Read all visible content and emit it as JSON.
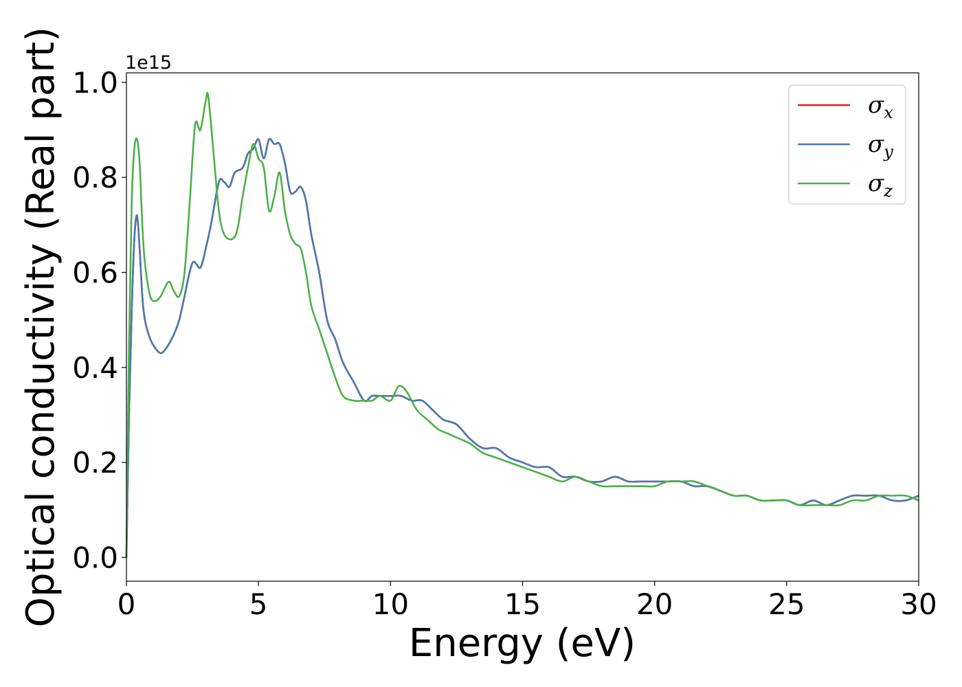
{
  "chart_data": {
    "type": "line",
    "title": "",
    "xlabel": "Energy (eV)",
    "ylabel": "Optical conductivity (Real part)",
    "y_offset_label": "1e15",
    "xlim": [
      0,
      30
    ],
    "ylim": [
      -0.05,
      1.02
    ],
    "x_ticks": [
      0,
      5,
      10,
      15,
      20,
      25,
      30
    ],
    "x_tick_labels": [
      "0",
      "5",
      "10",
      "15",
      "20",
      "25",
      "30"
    ],
    "y_ticks": [
      0.0,
      0.2,
      0.4,
      0.6,
      0.8,
      1.0
    ],
    "y_tick_labels": [
      "0.0",
      "0.2",
      "0.4",
      "0.6",
      "0.8",
      "1.0"
    ],
    "grid": false,
    "legend_position": "top-right",
    "series": [
      {
        "name": "σx",
        "symbol": "σ",
        "subscript": "x",
        "color": "#e41a1c",
        "x": [
          0,
          0.1,
          0.2,
          0.3,
          0.4,
          0.5,
          0.6,
          0.7,
          0.9,
          1.1,
          1.3,
          1.5,
          1.8,
          2.0,
          2.2,
          2.5,
          2.8,
          3.0,
          3.2,
          3.5,
          3.7,
          3.9,
          4.1,
          4.4,
          4.6,
          4.8,
          5.0,
          5.2,
          5.4,
          5.6,
          5.8,
          6.0,
          6.2,
          6.4,
          6.6,
          6.8,
          7.0,
          7.3,
          7.6,
          7.9,
          8.2,
          8.6,
          9.0,
          9.3,
          9.6,
          10.0,
          10.4,
          10.8,
          11.2,
          11.6,
          12.0,
          12.5,
          13.0,
          13.5,
          14.0,
          14.5,
          15.0,
          15.5,
          16.0,
          16.5,
          17.0,
          17.5,
          18.0,
          18.5,
          19.0,
          19.5,
          20.0,
          20.5,
          21.0,
          21.5,
          22.0,
          22.5,
          23.0,
          23.5,
          24.0,
          24.5,
          25.0,
          25.5,
          26.0,
          26.5,
          27.0,
          27.5,
          28.0,
          28.5,
          29.0,
          29.5,
          30.0
        ],
        "values": [
          0.0,
          0.3,
          0.52,
          0.67,
          0.72,
          0.65,
          0.55,
          0.5,
          0.46,
          0.44,
          0.43,
          0.44,
          0.47,
          0.5,
          0.55,
          0.62,
          0.61,
          0.65,
          0.7,
          0.79,
          0.79,
          0.78,
          0.81,
          0.82,
          0.85,
          0.86,
          0.88,
          0.84,
          0.88,
          0.87,
          0.87,
          0.83,
          0.77,
          0.77,
          0.78,
          0.75,
          0.68,
          0.6,
          0.5,
          0.46,
          0.41,
          0.37,
          0.33,
          0.34,
          0.34,
          0.34,
          0.34,
          0.33,
          0.33,
          0.31,
          0.29,
          0.28,
          0.25,
          0.23,
          0.23,
          0.21,
          0.2,
          0.19,
          0.19,
          0.17,
          0.17,
          0.16,
          0.16,
          0.17,
          0.16,
          0.16,
          0.16,
          0.16,
          0.16,
          0.15,
          0.15,
          0.14,
          0.13,
          0.13,
          0.12,
          0.12,
          0.12,
          0.11,
          0.12,
          0.11,
          0.12,
          0.13,
          0.13,
          0.13,
          0.12,
          0.12,
          0.13
        ]
      },
      {
        "name": "σy",
        "symbol": "σ",
        "subscript": "y",
        "color": "#4a7ab0",
        "x": [
          0,
          0.1,
          0.2,
          0.3,
          0.4,
          0.5,
          0.6,
          0.7,
          0.9,
          1.1,
          1.3,
          1.5,
          1.8,
          2.0,
          2.2,
          2.5,
          2.8,
          3.0,
          3.2,
          3.5,
          3.7,
          3.9,
          4.1,
          4.4,
          4.6,
          4.8,
          5.0,
          5.2,
          5.4,
          5.6,
          5.8,
          6.0,
          6.2,
          6.4,
          6.6,
          6.8,
          7.0,
          7.3,
          7.6,
          7.9,
          8.2,
          8.6,
          9.0,
          9.3,
          9.6,
          10.0,
          10.4,
          10.8,
          11.2,
          11.6,
          12.0,
          12.5,
          13.0,
          13.5,
          14.0,
          14.5,
          15.0,
          15.5,
          16.0,
          16.5,
          17.0,
          17.5,
          18.0,
          18.5,
          19.0,
          19.5,
          20.0,
          20.5,
          21.0,
          21.5,
          22.0,
          22.5,
          23.0,
          23.5,
          24.0,
          24.5,
          25.0,
          25.5,
          26.0,
          26.5,
          27.0,
          27.5,
          28.0,
          28.5,
          29.0,
          29.5,
          30.0
        ],
        "values": [
          0.0,
          0.3,
          0.52,
          0.67,
          0.72,
          0.65,
          0.55,
          0.5,
          0.46,
          0.44,
          0.43,
          0.44,
          0.47,
          0.5,
          0.55,
          0.62,
          0.61,
          0.65,
          0.7,
          0.79,
          0.79,
          0.78,
          0.81,
          0.82,
          0.85,
          0.86,
          0.88,
          0.84,
          0.88,
          0.87,
          0.87,
          0.83,
          0.77,
          0.77,
          0.78,
          0.75,
          0.68,
          0.6,
          0.5,
          0.46,
          0.41,
          0.37,
          0.33,
          0.34,
          0.34,
          0.34,
          0.34,
          0.33,
          0.33,
          0.31,
          0.29,
          0.28,
          0.25,
          0.23,
          0.23,
          0.21,
          0.2,
          0.19,
          0.19,
          0.17,
          0.17,
          0.16,
          0.16,
          0.17,
          0.16,
          0.16,
          0.16,
          0.16,
          0.16,
          0.15,
          0.15,
          0.14,
          0.13,
          0.13,
          0.12,
          0.12,
          0.12,
          0.11,
          0.12,
          0.11,
          0.12,
          0.13,
          0.13,
          0.13,
          0.12,
          0.12,
          0.13
        ]
      },
      {
        "name": "σz",
        "symbol": "σ",
        "subscript": "z",
        "color": "#4daf4a",
        "x": [
          0,
          0.1,
          0.2,
          0.3,
          0.4,
          0.5,
          0.6,
          0.7,
          0.9,
          1.1,
          1.3,
          1.6,
          1.8,
          2.0,
          2.2,
          2.4,
          2.6,
          2.8,
          3.0,
          3.1,
          3.3,
          3.5,
          3.7,
          4.0,
          4.2,
          4.4,
          4.6,
          4.8,
          5.0,
          5.2,
          5.4,
          5.6,
          5.8,
          6.0,
          6.2,
          6.4,
          6.6,
          6.8,
          7.0,
          7.3,
          7.6,
          7.9,
          8.2,
          8.6,
          9.0,
          9.3,
          9.6,
          10.0,
          10.3,
          10.6,
          11.0,
          11.4,
          11.8,
          12.2,
          12.6,
          13.0,
          13.5,
          14.0,
          14.5,
          15.0,
          15.5,
          16.0,
          16.5,
          17.0,
          17.5,
          18.0,
          18.5,
          19.0,
          19.5,
          20.0,
          20.5,
          21.0,
          21.5,
          22.0,
          22.5,
          23.0,
          23.5,
          24.0,
          24.5,
          25.0,
          25.5,
          26.0,
          26.5,
          27.0,
          27.5,
          28.0,
          28.5,
          29.0,
          29.5,
          30.0
        ],
        "values": [
          0.0,
          0.45,
          0.75,
          0.86,
          0.88,
          0.83,
          0.7,
          0.62,
          0.55,
          0.54,
          0.55,
          0.58,
          0.56,
          0.55,
          0.6,
          0.75,
          0.91,
          0.9,
          0.96,
          0.97,
          0.85,
          0.73,
          0.68,
          0.67,
          0.69,
          0.76,
          0.82,
          0.87,
          0.84,
          0.82,
          0.73,
          0.76,
          0.81,
          0.73,
          0.68,
          0.66,
          0.65,
          0.6,
          0.53,
          0.48,
          0.43,
          0.38,
          0.34,
          0.33,
          0.33,
          0.33,
          0.34,
          0.33,
          0.36,
          0.35,
          0.31,
          0.29,
          0.27,
          0.26,
          0.25,
          0.24,
          0.22,
          0.21,
          0.2,
          0.19,
          0.18,
          0.17,
          0.16,
          0.17,
          0.16,
          0.15,
          0.15,
          0.15,
          0.15,
          0.15,
          0.16,
          0.16,
          0.16,
          0.15,
          0.14,
          0.13,
          0.13,
          0.12,
          0.12,
          0.12,
          0.11,
          0.11,
          0.11,
          0.11,
          0.12,
          0.12,
          0.13,
          0.13,
          0.13,
          0.12
        ]
      }
    ]
  }
}
